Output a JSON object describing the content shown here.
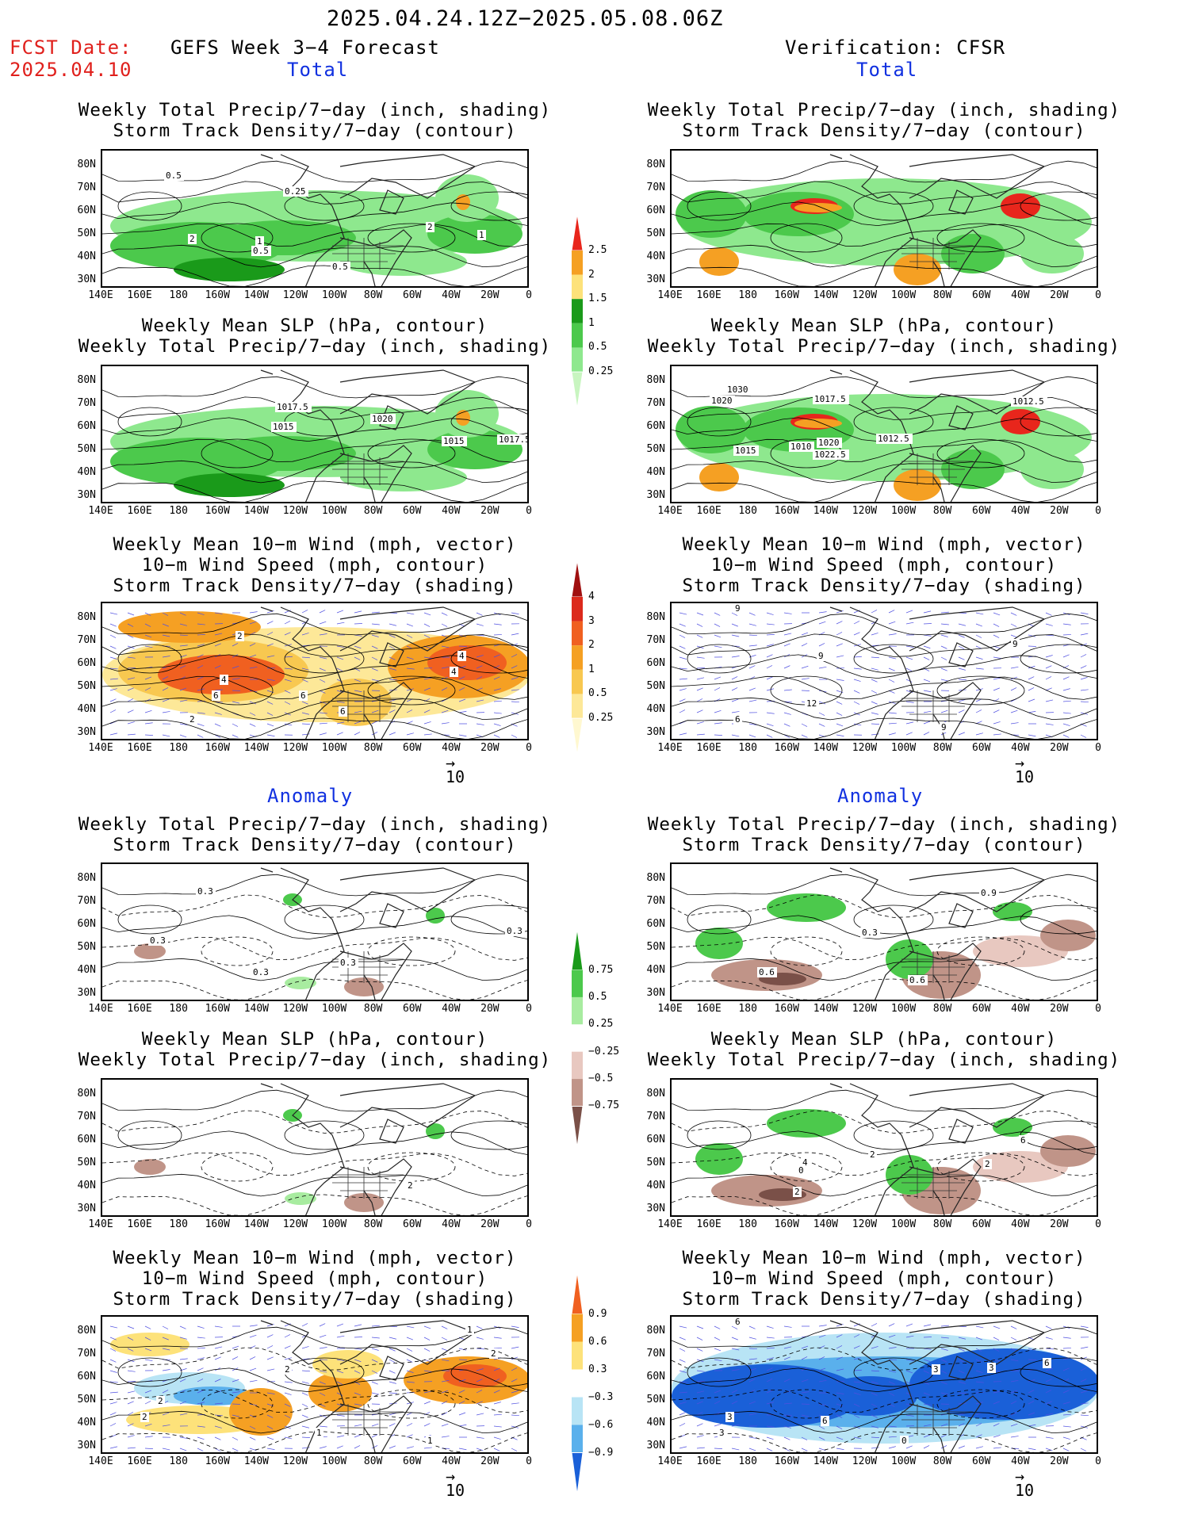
{
  "header": {
    "period": "2025.04.24.12Z−2025.05.08.06Z",
    "fcst_label": "FCST Date:",
    "fcst_date": "2025.04.10",
    "left_title": "GEFS Week 3−4 Forecast",
    "right_title": "Verification: CFSR"
  },
  "sections": {
    "total": "Total",
    "anomaly": "Anomaly"
  },
  "panel_titles": {
    "precip_storm": [
      "Weekly Total Precip/7−day (inch, shading)",
      "Storm Track Density/7−day (contour)"
    ],
    "slp_precip": [
      "Weekly Mean SLP (hPa, contour)",
      "Weekly Total Precip/7−day (inch, shading)"
    ],
    "wind_storm": [
      "Weekly Mean 10−m Wind (mph, vector)",
      "10−m Wind Speed (mph, contour)",
      "Storm Track Density/7−day (shading)"
    ]
  },
  "axes": {
    "lat_labels": [
      "80N",
      "70N",
      "60N",
      "50N",
      "40N",
      "30N"
    ],
    "lon_labels": [
      "140E",
      "160E",
      "180",
      "160W",
      "140W",
      "120W",
      "100W",
      "80W",
      "60W",
      "40W",
      "20W",
      "0"
    ]
  },
  "vector_ref": {
    "arrow": "→",
    "value": "10"
  },
  "colorbars": {
    "precip_total": {
      "labels": [
        "2.5",
        "2",
        "1.5",
        "1",
        "0.5",
        "0.25"
      ],
      "colors": [
        "#e8261c",
        "#f5a023",
        "#fde27a",
        "#1a9a1a",
        "#4cc94c",
        "#8ee88e",
        "#c8f5c0"
      ]
    },
    "storm_total": {
      "labels": [
        "4",
        "3",
        "2",
        "1",
        "0.5",
        "0.25"
      ],
      "colors": [
        "#a01010",
        "#dc2a1c",
        "#f06020",
        "#f5a023",
        "#f8c850",
        "#fde898",
        "#fff8d0"
      ]
    },
    "precip_anom": {
      "labels": [
        "0.75",
        "0.5",
        "0.25",
        "−0.25",
        "−0.5",
        "−0.75"
      ],
      "colors": [
        "#1a9a1a",
        "#4cc94c",
        "#a8eca0",
        "#ffffff",
        "#e8c8c0",
        "#c09488",
        "#7a5048"
      ]
    },
    "storm_anom": {
      "labels": [
        "0.9",
        "0.6",
        "0.3",
        "−0.3",
        "−0.6",
        "−0.9"
      ],
      "colors": [
        "#f06020",
        "#f5a023",
        "#fde27a",
        "#ffffff",
        "#b8e4f5",
        "#5ab0ec",
        "#1a60d8"
      ]
    }
  },
  "contour_labels": {
    "f_total_precip": [
      "0.5",
      "0.25",
      "2",
      "1",
      "0.5",
      "2",
      "1",
      "0.5"
    ],
    "f_total_slp": [
      "1017.5",
      "1015",
      "1020",
      "1015",
      "1017.5"
    ],
    "f_total_wind": [
      "2",
      "4",
      "6",
      "6",
      "4",
      "4",
      "6",
      "2"
    ],
    "v_total_slp": [
      "1030",
      "1020",
      "1017.5",
      "1015",
      "1010",
      "1020",
      "1022.5",
      "1012.5",
      "1012.5"
    ],
    "v_total_wind": [
      "9",
      "9",
      "12",
      "6",
      "9",
      "9"
    ],
    "f_anom_precip": [
      "0.3",
      "0.3",
      "0.3",
      "0.3",
      "0.3"
    ],
    "v_anom_precip": [
      "0.9",
      "0.3",
      "0.6",
      "0.6"
    ],
    "f_anom_slp": [
      "2"
    ],
    "v_anom_slp": [
      "6",
      "4",
      "0",
      "2",
      "2",
      "2"
    ],
    "f_anom_wind": [
      "1",
      "2",
      "2",
      "1",
      "1",
      "2",
      "2"
    ],
    "v_anom_wind": [
      "6",
      "3",
      "3",
      "6",
      "3",
      "6",
      "3",
      "0"
    ]
  }
}
